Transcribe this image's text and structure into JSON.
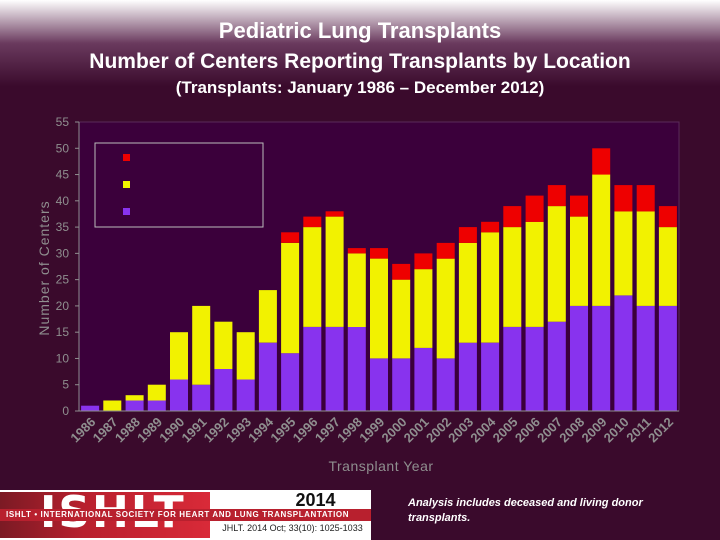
{
  "slide": {
    "title": "Pediatric Lung Transplants",
    "subtitle": "Number of Centers Reporting Transplants by Location",
    "subtitle2": "(Transplants: January 1986 – December 2012)",
    "note": "Analysis includes deceased and living donor transplants.",
    "logo": {
      "name": "ISHLT",
      "tagline": "ISHLT • INTERNATIONAL SOCIETY FOR HEART AND LUNG TRANSPLANTATION",
      "year": "2014",
      "citation": "JHLT. 2014 Oct; 33(10): 1025-1033"
    }
  },
  "colors": {
    "background": "#3a0a2c",
    "plot_bg": "#3b003b",
    "europe": "#ee0000",
    "north_america": "#f2f200",
    "other": "#8833ee",
    "text": "#ffffff",
    "axis_text": "#8f8f8f"
  },
  "chart_data": {
    "type": "bar",
    "stacked": true,
    "title": "",
    "xlabel": "Transplant Year",
    "ylabel": "Number of Centers",
    "ylim": [
      0,
      55
    ],
    "yticks": [
      0,
      5,
      10,
      15,
      20,
      25,
      30,
      35,
      40,
      45,
      50,
      55
    ],
    "grid": false,
    "legend_position": "top-left",
    "categories": [
      "1986",
      "1987",
      "1988",
      "1989",
      "1990",
      "1991",
      "1992",
      "1993",
      "1994",
      "1995",
      "1996",
      "1997",
      "1998",
      "1999",
      "2000",
      "2001",
      "2002",
      "2003",
      "2004",
      "2005",
      "2006",
      "2007",
      "2008",
      "2009",
      "2010",
      "2011",
      "2012"
    ],
    "series": [
      {
        "color": "#8833ee",
        "values": [
          1,
          0,
          2,
          2,
          6,
          5,
          8,
          6,
          13,
          11,
          16,
          16,
          16,
          10,
          10,
          12,
          10,
          13,
          13,
          16,
          16,
          17,
          20,
          20,
          22,
          20,
          20
        ]
      },
      {
        "color": "#f2f200",
        "values": [
          0,
          2,
          1,
          3,
          9,
          15,
          9,
          9,
          10,
          21,
          19,
          21,
          14,
          19,
          15,
          15,
          19,
          19,
          21,
          19,
          20,
          22,
          17,
          25,
          16,
          18,
          15
        ]
      },
      {
        "color": "#ee0000",
        "values": [
          0,
          0,
          0,
          0,
          0,
          0,
          0,
          0,
          0,
          2,
          2,
          1,
          1,
          2,
          3,
          3,
          3,
          3,
          2,
          4,
          5,
          4,
          4,
          5,
          5,
          5,
          4
        ]
      }
    ]
  }
}
